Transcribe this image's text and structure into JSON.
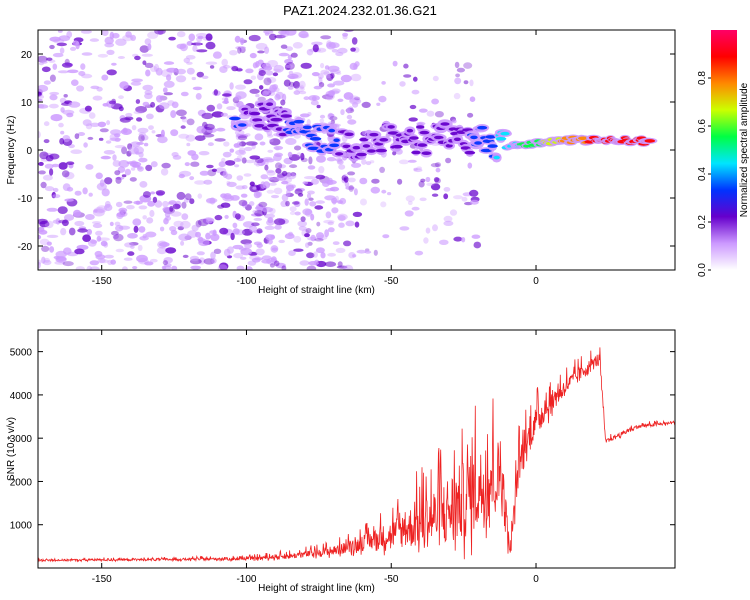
{
  "title": "PAZ1.2024.232.01.36.G21",
  "chart_data": [
    {
      "type": "heatmap",
      "xlabel": "Height of straight line (km)",
      "ylabel": "Frequency (Hz)",
      "xlim": [
        -172,
        48
      ],
      "ylim": [
        -25,
        25
      ],
      "xticks": [
        -150,
        -100,
        -50,
        0
      ],
      "yticks": [
        -20,
        -10,
        0,
        10,
        20
      ],
      "colorbar": {
        "label": "Normalized spectral amplitude",
        "range": [
          0,
          1
        ],
        "ticks": [
          "0.0",
          "0.2",
          "0.4",
          "0.6",
          "0.8"
        ],
        "colors": [
          "#ffffff",
          "#cc99ff",
          "#6600cc",
          "#0033ff",
          "#00e5ff",
          "#00ff44",
          "#ccff00",
          "#ff8800",
          "#ff0000",
          "#ff0066"
        ]
      },
      "ridge": [
        {
          "x": -104,
          "y": 5.5,
          "v": 0.3
        },
        {
          "x": -92,
          "y": 7,
          "v": 0.2
        },
        {
          "x": -84,
          "y": 5,
          "v": 0.3
        },
        {
          "x": -74,
          "y": 2,
          "v": 0.3
        },
        {
          "x": -62,
          "y": 0.5,
          "v": 0.25
        },
        {
          "x": -50,
          "y": 3,
          "v": 0.2
        },
        {
          "x": -40,
          "y": 2,
          "v": 0.25
        },
        {
          "x": -30,
          "y": 2.5,
          "v": 0.2
        },
        {
          "x": -20,
          "y": 2,
          "v": 0.3
        },
        {
          "x": -10,
          "y": 1,
          "v": 0.45
        },
        {
          "x": 0,
          "y": 1.5,
          "v": 0.55
        },
        {
          "x": 10,
          "y": 2,
          "v": 0.75
        },
        {
          "x": 20,
          "y": 2,
          "v": 0.85
        },
        {
          "x": 30,
          "y": 2,
          "v": 0.9
        },
        {
          "x": 40,
          "y": 1.8,
          "v": 0.9
        }
      ]
    },
    {
      "type": "line",
      "xlabel": "Height of straight line (km)",
      "ylabel": "SNR (10 * v/v)",
      "xlim": [
        -172,
        48
      ],
      "ylim": [
        0,
        5500
      ],
      "xticks": [
        -150,
        -100,
        -50,
        0
      ],
      "yticks": [
        1000,
        2000,
        3000,
        4000,
        5000
      ],
      "color": "#ee2222",
      "envelope": [
        {
          "x": -172,
          "base": 170,
          "amp": 60
        },
        {
          "x": -120,
          "base": 190,
          "amp": 80
        },
        {
          "x": -100,
          "base": 200,
          "amp": 100
        },
        {
          "x": -85,
          "base": 250,
          "amp": 180
        },
        {
          "x": -70,
          "base": 350,
          "amp": 300
        },
        {
          "x": -60,
          "base": 500,
          "amp": 500
        },
        {
          "x": -50,
          "base": 650,
          "amp": 900
        },
        {
          "x": -40,
          "base": 800,
          "amp": 1600
        },
        {
          "x": -30,
          "base": 1000,
          "amp": 2400
        },
        {
          "x": -20,
          "base": 1400,
          "amp": 2800
        },
        {
          "x": -12,
          "base": 1800,
          "amp": 2500
        },
        {
          "x": -9,
          "base": 300,
          "amp": 300
        },
        {
          "x": -6,
          "base": 2200,
          "amp": 1400
        },
        {
          "x": 0,
          "base": 3300,
          "amp": 900
        },
        {
          "x": 10,
          "base": 4100,
          "amp": 600
        },
        {
          "x": 22,
          "base": 4800,
          "amp": 400
        },
        {
          "x": 24,
          "base": 2900,
          "amp": 150
        },
        {
          "x": 35,
          "base": 3250,
          "amp": 120
        },
        {
          "x": 48,
          "base": 3350,
          "amp": 100
        }
      ]
    }
  ]
}
